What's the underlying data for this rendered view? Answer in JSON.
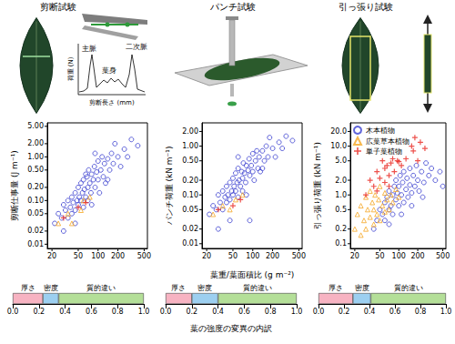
{
  "panels": [
    {
      "title": "剪断試験",
      "inset": {
        "ylabel": "荷重 (N)",
        "xlabel": "剪断長さ (mm)",
        "annotations": [
          "主脈",
          "葉身",
          "二次脈"
        ]
      }
    },
    {
      "title": "パンチ試験"
    },
    {
      "title": "引っ張り試験"
    }
  ],
  "chart_data": [
    {
      "type": "scatter",
      "log": true,
      "ylabel": "剪断仕事量 (J m⁻¹)",
      "xlim": [
        17,
        560
      ],
      "xticks": [
        20,
        50,
        100,
        200,
        500
      ],
      "ylim": [
        0.008,
        6
      ],
      "yticks": [
        0.01,
        0.02,
        0.05,
        {
          "value": 0.1,
          "label": "0.10"
        },
        {
          "value": 0.2,
          "label": "0.20"
        },
        {
          "value": 0.5,
          "label": "0.50"
        },
        {
          "value": 1,
          "label": "1.00"
        },
        {
          "value": 2,
          "label": "2.00"
        },
        {
          "value": 5,
          "label": "5.00"
        }
      ],
      "series": [
        {
          "color": "#3a3fd0",
          "marker": "circle",
          "x": [
            22,
            25,
            28,
            30,
            32,
            35,
            35,
            38,
            40,
            40,
            42,
            45,
            45,
            48,
            50,
            50,
            52,
            55,
            55,
            58,
            60,
            60,
            62,
            65,
            68,
            70,
            70,
            72,
            75,
            78,
            80,
            80,
            85,
            88,
            90,
            95,
            100,
            100,
            105,
            110,
            115,
            120,
            125,
            130,
            140,
            150,
            160,
            170,
            180,
            200,
            220,
            250,
            280,
            320,
            400,
            30,
            45,
            65,
            90,
            140
          ],
          "values": [
            0.03,
            0.05,
            0.04,
            0.08,
            0.06,
            0.1,
            0.04,
            0.07,
            0.12,
            0.05,
            0.09,
            0.15,
            0.06,
            0.1,
            0.2,
            0.08,
            0.12,
            0.25,
            0.1,
            0.15,
            0.3,
            0.07,
            0.18,
            0.12,
            0.35,
            0.2,
            0.1,
            0.5,
            0.25,
            0.15,
            0.4,
            0.08,
            0.3,
            0.6,
            0.2,
            0.45,
            0.3,
            0.8,
            0.15,
            0.5,
            1,
            0.35,
            0.7,
            0.25,
            0.9,
            0.5,
            1.2,
            0.7,
            2,
            1,
            0.6,
            1.5,
            1,
            2.5,
            1.8,
            0.02,
            0.03,
            0.4,
            1.2,
            0.3
          ]
        },
        {
          "color": "#f5a623",
          "marker": "triangle",
          "x": [
            25,
            35,
            40,
            55,
            60,
            75
          ],
          "values": [
            0.03,
            0.05,
            0.03,
            0.06,
            0.1,
            0.12
          ]
        },
        {
          "color": "#e8251f",
          "marker": "plus",
          "x": [
            30,
            50,
            65
          ],
          "values": [
            0.04,
            0.07,
            0.09
          ]
        }
      ]
    },
    {
      "type": "scatter",
      "log": true,
      "ylabel": "パンチ荷重 (kN m⁻¹)",
      "xlabel": "葉重/葉面積比 (g m⁻²)",
      "xlim": [
        17,
        560
      ],
      "xticks": [
        20,
        50,
        100,
        200,
        500
      ],
      "ylim": [
        0.008,
        3
      ],
      "yticks": [
        0.01,
        0.02,
        0.05,
        {
          "value": 0.1,
          "label": "0.10"
        },
        {
          "value": 0.2,
          "label": "0.20"
        },
        {
          "value": 0.5,
          "label": "0.50"
        },
        {
          "value": 1,
          "label": "1.00"
        },
        {
          "value": 2,
          "label": "2.00"
        }
      ],
      "series": [
        {
          "color": "#3a3fd0",
          "marker": "circle",
          "x": [
            22,
            25,
            28,
            30,
            32,
            35,
            35,
            38,
            40,
            40,
            42,
            45,
            45,
            48,
            50,
            50,
            52,
            55,
            55,
            58,
            60,
            60,
            62,
            65,
            68,
            70,
            70,
            72,
            75,
            78,
            80,
            80,
            85,
            88,
            90,
            95,
            100,
            100,
            105,
            110,
            115,
            120,
            125,
            130,
            140,
            150,
            160,
            170,
            180,
            200,
            220,
            250,
            280,
            320,
            400,
            30,
            45,
            90,
            140,
            60
          ],
          "values": [
            0.04,
            0.06,
            0.05,
            0.1,
            0.07,
            0.12,
            0.05,
            0.09,
            0.15,
            0.07,
            0.1,
            0.18,
            0.08,
            0.12,
            0.22,
            0.1,
            0.15,
            0.28,
            0.12,
            0.18,
            0.35,
            0.09,
            0.2,
            0.15,
            0.3,
            0.22,
            0.12,
            0.45,
            0.28,
            0.18,
            0.4,
            0.1,
            0.32,
            0.55,
            0.25,
            0.4,
            0.3,
            0.7,
            0.2,
            0.5,
            0.8,
            0.35,
            0.6,
            0.3,
            0.8,
            0.5,
            1,
            0.6,
            1.5,
            0.9,
            0.6,
            1.2,
            0.9,
            1.6,
            1.3,
            0.02,
            0.03,
            0.03,
            0.35,
            0.6
          ]
        },
        {
          "color": "#f5a623",
          "marker": "triangle",
          "x": [
            25,
            35,
            45,
            55,
            70
          ],
          "values": [
            0.04,
            0.06,
            0.05,
            0.08,
            0.1
          ]
        },
        {
          "color": "#e8251f",
          "marker": "plus",
          "x": [
            30,
            50,
            65
          ],
          "values": [
            0.05,
            0.06,
            0.08
          ]
        }
      ]
    },
    {
      "type": "scatter",
      "log": true,
      "ylabel": "引っ張り荷重 (kN m⁻¹)",
      "legend": "top-left",
      "xlim": [
        17,
        560
      ],
      "xticks": [
        20,
        50,
        100,
        200,
        500
      ],
      "ylim": [
        0.08,
        30
      ],
      "yticks": [
        0.1,
        0.2,
        0.5,
        {
          "value": 1,
          "label": "1.0"
        },
        {
          "value": 2,
          "label": "2.0"
        },
        {
          "value": 5,
          "label": "5.0"
        },
        {
          "value": 10,
          "label": "10.0"
        },
        {
          "value": 20,
          "label": "20.0"
        }
      ],
      "series": [
        {
          "name": "木本植物",
          "color": "#3a3fd0",
          "marker": "circle",
          "x": [
            45,
            50,
            55,
            60,
            60,
            65,
            70,
            70,
            75,
            80,
            80,
            85,
            90,
            90,
            95,
            100,
            100,
            105,
            110,
            115,
            120,
            120,
            130,
            135,
            140,
            150,
            150,
            160,
            170,
            180,
            190,
            200,
            210,
            230,
            250,
            270,
            300,
            330,
            380,
            450,
            500,
            40,
            70,
            110,
            160,
            240
          ],
          "values": [
            0.3,
            0.5,
            0.4,
            0.7,
            0.3,
            0.9,
            0.5,
            1.2,
            0.6,
            1,
            0.4,
            1.5,
            0.8,
            2,
            1.1,
            0.6,
            1.5,
            2.5,
            1,
            1.8,
            0.7,
            3,
            1.3,
            2.2,
            0.9,
            1.6,
            3.5,
            1.1,
            2.5,
            1.5,
            4,
            2,
            1.2,
            3,
            1.8,
            4.5,
            2.5,
            3.5,
            2,
            3,
            1.5,
            0.2,
            0.25,
            0.4,
            0.6,
            0.9
          ]
        },
        {
          "name": "広葉草本植物",
          "color": "#f5a623",
          "marker": "triangle",
          "x": [
            20,
            22,
            25,
            25,
            28,
            30,
            30,
            32,
            35,
            35,
            38,
            40,
            40,
            42,
            45,
            48,
            50,
            50,
            55,
            60,
            60,
            65,
            70,
            75,
            80,
            90,
            100
          ],
          "values": [
            0.2,
            0.4,
            0.15,
            0.6,
            0.3,
            0.9,
            0.2,
            0.5,
            0.35,
            1.2,
            0.7,
            0.25,
            0.5,
            1,
            0.4,
            0.8,
            0.3,
            1.5,
            0.6,
            0.45,
            1.1,
            0.8,
            0.5,
            1,
            0.7,
            1.3,
            0.9
          ]
        },
        {
          "name": "単子葉植物",
          "color": "#e8251f",
          "marker": "plus",
          "x": [
            30,
            35,
            40,
            45,
            50,
            55,
            60,
            60,
            65,
            70,
            75,
            80,
            85,
            160,
            95,
            100,
            110,
            220,
            130,
            260,
            180,
            170,
            200,
            45,
            70
          ],
          "values": [
            1,
            2,
            1.5,
            3,
            2.2,
            5,
            1.8,
            3.5,
            4,
            2.5,
            4.5,
            5.5,
            3,
            10,
            5,
            4.8,
            4,
            12,
            5.5,
            9,
            15,
            8,
            5,
            1.2,
            1.5
          ]
        }
      ]
    },
    {
      "type": "bar",
      "orientation": "horizontal",
      "stacked": true,
      "categories": [
        null
      ],
      "xlim": [
        0,
        1
      ],
      "xticks": [
        {
          "value": 0,
          "label": "0.0"
        },
        0.2,
        0.4,
        0.6,
        0.8,
        {
          "value": 1,
          "label": "1.0"
        }
      ],
      "series": [
        {
          "name": "厚さ",
          "color": "#f7b3c2",
          "values": [
            0.23
          ]
        },
        {
          "name": "密度",
          "color": "#9ccff0",
          "values": [
            0.12
          ]
        },
        {
          "name": "質的違い",
          "color": "#b4df98",
          "values": [
            0.65
          ]
        }
      ]
    },
    {
      "type": "bar",
      "orientation": "horizontal",
      "stacked": true,
      "xlabel": "葉の強度の変異の内訳",
      "categories": [
        null
      ],
      "xlim": [
        0,
        1
      ],
      "xticks": [
        {
          "value": 0,
          "label": "0.0"
        },
        0.2,
        0.4,
        0.6,
        0.8,
        {
          "value": 1,
          "label": "1.0"
        }
      ],
      "series": [
        {
          "name": "厚さ",
          "color": "#f7b3c2",
          "values": [
            0.2
          ]
        },
        {
          "name": "密度",
          "color": "#9ccff0",
          "values": [
            0.2
          ]
        },
        {
          "name": "質的違い",
          "color": "#b4df98",
          "values": [
            0.6
          ]
        }
      ]
    },
    {
      "type": "bar",
      "orientation": "horizontal",
      "stacked": true,
      "categories": [
        null
      ],
      "xlim": [
        0,
        1
      ],
      "xticks": [
        {
          "value": 0,
          "label": "0.0"
        },
        0.2,
        0.4,
        0.6,
        0.8,
        {
          "value": 1,
          "label": "1.0"
        }
      ],
      "series": [
        {
          "name": "厚さ",
          "color": "#f7b3c2",
          "values": [
            0.27
          ]
        },
        {
          "name": "密度",
          "color": "#9ccff0",
          "values": [
            0.14
          ]
        },
        {
          "name": "質的違い",
          "color": "#b4df98",
          "values": [
            0.59
          ]
        }
      ]
    }
  ]
}
